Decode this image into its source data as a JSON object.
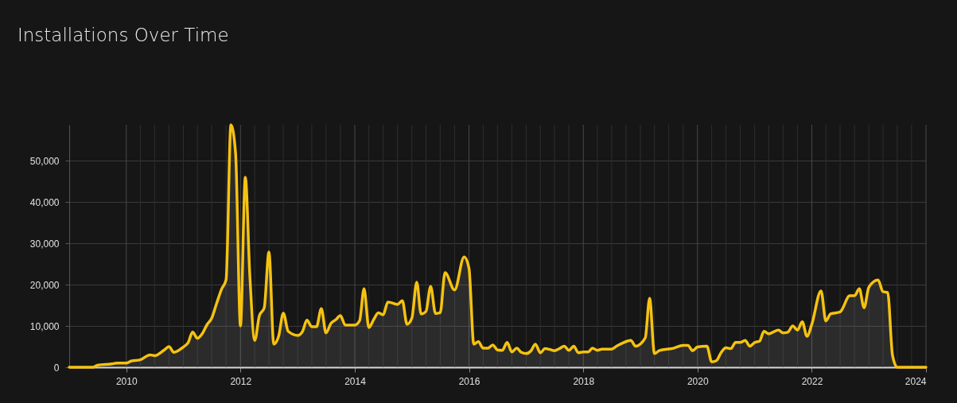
{
  "chart_data": {
    "type": "area",
    "title": "Installations Over Time",
    "x": [
      "2009-01",
      "2009-06",
      "2009-07",
      "2009-10",
      "2009-11",
      "2010-01",
      "2010-02",
      "2010-04",
      "2010-06",
      "2010-07",
      "2010-09",
      "2010-10",
      "2010-11",
      "2011-01",
      "2011-02",
      "2011-03",
      "2011-04",
      "2011-05",
      "2011-06",
      "2011-07",
      "2011-08",
      "2011-09",
      "2011-10",
      "2011-11",
      "2011-12",
      "2012-01",
      "2012-02",
      "2012-03",
      "2012-04",
      "2012-05",
      "2012-06",
      "2012-07",
      "2012-08",
      "2012-09",
      "2012-10",
      "2012-11",
      "2013-01",
      "2013-02",
      "2013-03",
      "2013-04",
      "2013-05",
      "2013-06",
      "2013-07",
      "2013-08",
      "2013-09",
      "2013-10",
      "2013-11",
      "2014-01",
      "2014-02",
      "2014-03",
      "2014-04",
      "2014-05",
      "2014-06",
      "2014-07",
      "2014-08",
      "2014-10",
      "2014-11",
      "2014-12",
      "2015-01",
      "2015-02",
      "2015-03",
      "2015-04",
      "2015-05",
      "2015-06",
      "2015-07",
      "2015-08",
      "2015-10",
      "2015-12",
      "2016-01",
      "2016-02",
      "2016-03",
      "2016-04",
      "2016-05",
      "2016-06",
      "2016-07",
      "2016-08",
      "2016-09",
      "2016-10",
      "2016-11",
      "2016-12",
      "2017-01",
      "2017-02",
      "2017-03",
      "2017-04",
      "2017-05",
      "2017-06",
      "2017-07",
      "2017-08",
      "2017-09",
      "2017-10",
      "2017-11",
      "2017-12",
      "2018-01",
      "2018-02",
      "2018-03",
      "2018-04",
      "2018-05",
      "2018-07",
      "2018-08",
      "2018-09",
      "2018-11",
      "2018-12",
      "2019-02",
      "2019-03",
      "2019-04",
      "2019-05",
      "2019-08",
      "2019-10",
      "2019-11",
      "2019-12",
      "2020-01",
      "2020-03",
      "2020-04",
      "2020-05",
      "2020-06",
      "2020-07",
      "2020-08",
      "2020-09",
      "2020-10",
      "2020-11",
      "2020-12",
      "2021-01",
      "2021-02",
      "2021-03",
      "2021-04",
      "2021-06",
      "2021-07",
      "2021-08",
      "2021-09",
      "2021-10",
      "2021-11",
      "2021-12",
      "2022-01",
      "2022-03",
      "2022-04",
      "2022-05",
      "2022-07",
      "2022-09",
      "2022-10",
      "2022-11",
      "2022-12",
      "2023-01",
      "2023-03",
      "2023-04",
      "2023-05",
      "2023-06",
      "2023-07",
      "2023-10",
      "2024-01"
    ],
    "series": [
      {
        "color": "#f5c211",
        "values": [
          0,
          0,
          500,
          800,
          1000,
          1000,
          1500,
          1800,
          3000,
          2800,
          4200,
          5000,
          3600,
          4900,
          6000,
          8500,
          7000,
          8100,
          10300,
          11900,
          15400,
          18800,
          21200,
          58700,
          51700,
          10000,
          46000,
          22100,
          6500,
          12500,
          14400,
          27900,
          5600,
          7500,
          13100,
          8700,
          7700,
          8700,
          11400,
          9800,
          9800,
          14200,
          8300,
          10600,
          11500,
          12500,
          10200,
          10200,
          11300,
          19000,
          9600,
          11500,
          13200,
          12700,
          15800,
          15200,
          16100,
          10400,
          11900,
          20600,
          12900,
          13500,
          19600,
          13000,
          13200,
          22900,
          18700,
          26700,
          24000,
          5600,
          6200,
          4600,
          4600,
          5400,
          4200,
          4100,
          6000,
          3700,
          4600,
          3600,
          3300,
          4000,
          5600,
          3500,
          4500,
          4300,
          4000,
          4500,
          5100,
          4100,
          5100,
          3500,
          3700,
          3700,
          4600,
          4100,
          4400,
          4400,
          5100,
          5700,
          6500,
          5100,
          7100,
          16700,
          3300,
          4000,
          4600,
          5300,
          5300,
          4000,
          4900,
          5100,
          1300,
          1600,
          3600,
          4700,
          4500,
          6000,
          6000,
          6500,
          5100,
          6000,
          6300,
          8700,
          8100,
          9000,
          8300,
          8500,
          10000,
          9000,
          11000,
          7500,
          10400,
          18500,
          11200,
          12900,
          13400,
          17300,
          17300,
          19000,
          14400,
          19400,
          21100,
          18300,
          18100,
          2900,
          0,
          0,
          0
        ]
      }
    ],
    "xlim": [
      "2009-01",
      "2024-01"
    ],
    "xticks": [
      "2010",
      {
        "value": "2010-04",
        "label": null
      },
      {
        "value": "2010-07",
        "label": null
      },
      {
        "value": "2010-10",
        "label": null
      },
      {
        "value": "2011-01",
        "label": null
      },
      {
        "value": "2011-04",
        "label": null
      },
      {
        "value": "2011-07",
        "label": null
      },
      {
        "value": "2011-10",
        "label": null
      },
      "2012",
      {
        "value": "2012-04",
        "label": null
      },
      {
        "value": "2012-07",
        "label": null
      },
      {
        "value": "2012-10",
        "label": null
      },
      {
        "value": "2013-01",
        "label": null
      },
      {
        "value": "2013-04",
        "label": null
      },
      {
        "value": "2013-07",
        "label": null
      },
      {
        "value": "2013-10",
        "label": null
      },
      "2014",
      {
        "value": "2014-04",
        "label": null
      },
      {
        "value": "2014-07",
        "label": null
      },
      {
        "value": "2014-10",
        "label": null
      },
      {
        "value": "2015-01",
        "label": null
      },
      {
        "value": "2015-04",
        "label": null
      },
      {
        "value": "2015-07",
        "label": null
      },
      {
        "value": "2015-10",
        "label": null
      },
      "2016",
      {
        "value": "2016-04",
        "label": null
      },
      {
        "value": "2016-07",
        "label": null
      },
      {
        "value": "2016-10",
        "label": null
      },
      {
        "value": "2017-01",
        "label": null
      },
      {
        "value": "2017-04",
        "label": null
      },
      {
        "value": "2017-07",
        "label": null
      },
      {
        "value": "2017-10",
        "label": null
      },
      "2018",
      {
        "value": "2018-04",
        "label": null
      },
      {
        "value": "2018-07",
        "label": null
      },
      {
        "value": "2018-10",
        "label": null
      },
      {
        "value": "2019-01",
        "label": null
      },
      {
        "value": "2019-04",
        "label": null
      },
      {
        "value": "2019-07",
        "label": null
      },
      {
        "value": "2019-10",
        "label": null
      },
      "2020",
      {
        "value": "2020-04",
        "label": null
      },
      {
        "value": "2020-07",
        "label": null
      },
      {
        "value": "2020-10",
        "label": null
      },
      {
        "value": "2021-01",
        "label": null
      },
      {
        "value": "2021-04",
        "label": null
      },
      {
        "value": "2021-07",
        "label": null
      },
      {
        "value": "2021-10",
        "label": null
      },
      "2022",
      {
        "value": "2022-04",
        "label": null
      },
      {
        "value": "2022-07",
        "label": null
      },
      {
        "value": "2022-10",
        "label": null
      },
      {
        "value": "2023-01",
        "label": null
      },
      {
        "value": "2023-04",
        "label": null
      },
      {
        "value": "2023-07",
        "label": null
      },
      {
        "value": "2023-10",
        "label": null
      },
      "2024"
    ],
    "ylim": [
      0,
      58700
    ],
    "yticks": [
      0,
      {
        "value": 10000,
        "label": "10,000"
      },
      {
        "value": 20000,
        "label": "20,000"
      },
      {
        "value": 30000,
        "label": "30,000"
      },
      {
        "value": 40000,
        "label": "40,000"
      },
      {
        "value": 50000,
        "label": "50,000"
      }
    ],
    "grid": true
  }
}
